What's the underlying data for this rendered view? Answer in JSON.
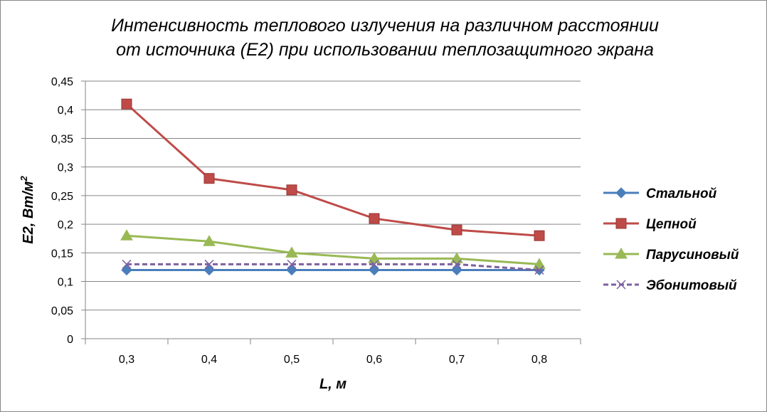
{
  "chart_data": {
    "type": "line",
    "title_lines": [
      "Интенсивность теплового излучения на различном расстоянии",
      "от источника (Е2) при использовании теплозащитного экрана"
    ],
    "xlabel": "L, м",
    "ylabel": "E2, Вт/м",
    "ylabel_superscript": "2",
    "categories": [
      "0,3",
      "0,4",
      "0,5",
      "0,6",
      "0,7",
      "0,8"
    ],
    "ylim": [
      0,
      0.45
    ],
    "y_ticks": [
      0,
      0.05,
      0.1,
      0.15,
      0.2,
      0.25,
      0.3,
      0.35,
      0.4,
      0.45
    ],
    "y_tick_labels": [
      "0",
      "0,05",
      "0,1",
      "0,15",
      "0,2",
      "0,25",
      "0,3",
      "0,35",
      "0,4",
      "0,45"
    ],
    "grid": "horizontal",
    "legend_position": "right",
    "series": [
      {
        "name": "Стальной",
        "values": [
          0.12,
          0.12,
          0.12,
          0.12,
          0.12,
          0.12
        ],
        "color": "#4A7EBB",
        "marker": "diamond",
        "dash": "solid"
      },
      {
        "name": "Цепной",
        "values": [
          0.41,
          0.28,
          0.26,
          0.21,
          0.19,
          0.18
        ],
        "color": "#BE4B48",
        "marker": "square",
        "dash": "solid"
      },
      {
        "name": "Парусиновый",
        "values": [
          0.18,
          0.17,
          0.15,
          0.14,
          0.14,
          0.13
        ],
        "color": "#98B954",
        "marker": "triangle",
        "dash": "solid"
      },
      {
        "name": "Эбонитовый",
        "values": [
          0.13,
          0.13,
          0.13,
          0.13,
          0.13,
          0.12
        ],
        "color": "#7D60A0",
        "marker": "x",
        "dash": "dashed"
      }
    ]
  }
}
